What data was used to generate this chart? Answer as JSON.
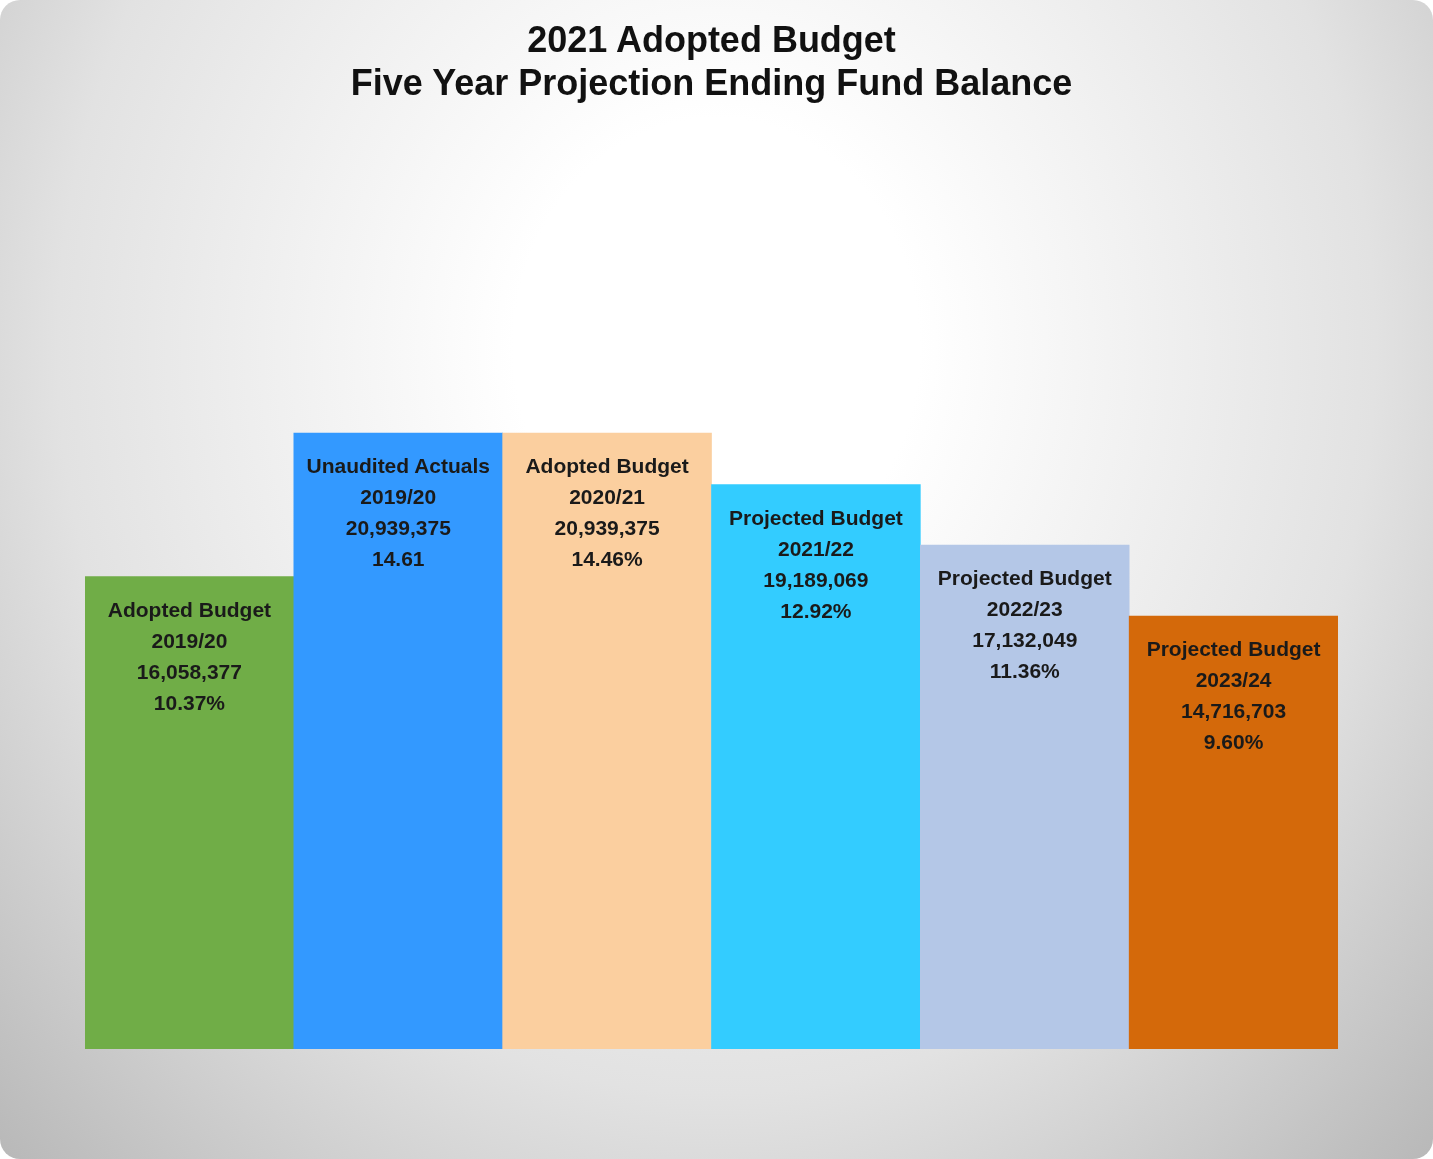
{
  "chart_data": {
    "type": "bar",
    "title": "2021 Adopted Budget\nFive Year Projection Ending Fund Balance",
    "categories": [
      "Adopted Budget 2019/20",
      "Unaudited Actuals 2019/20",
      "Adopted Budget 2020/21",
      "Projected Budget 2021/22",
      "Projected Budget 2022/23",
      "Projected Budget 2023/24"
    ],
    "values": [
      16058377,
      20939375,
      20939375,
      19189069,
      17132049,
      14716703
    ],
    "colors": [
      "#70ad47",
      "#3399ff",
      "#fbcf9f",
      "#33ccff",
      "#b4c7e7",
      "#d4690a"
    ],
    "value_labels": [
      "16,058,377\n10.37%",
      "20,939,375\n14.61",
      "20,939,375\n14.46%",
      "19,189,069\n12.92%",
      "17,132,049\n11.36%",
      "14,716,703\n9.60%"
    ],
    "tick_labels": false,
    "legend": false
  }
}
